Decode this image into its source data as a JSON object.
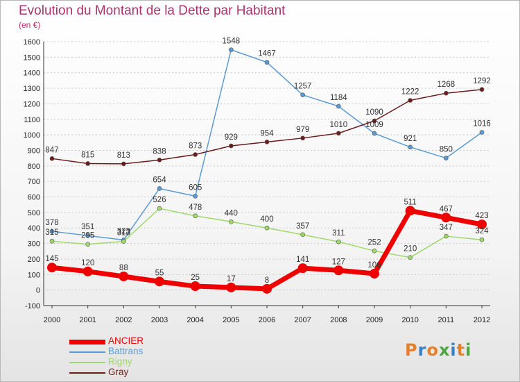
{
  "title": "Evolution du Montant de la Dette par Habitant",
  "subtitle": "(en €)",
  "logo": {
    "text": "Proxiti",
    "colors": [
      "#e8802a",
      "#3a7fc1",
      "#e8802a",
      "#4aa83c",
      "#3a7fc1",
      "#e8802a",
      "#4aa83c"
    ]
  },
  "colors": {
    "title": "#b0306f",
    "grid": "#c8c8c8",
    "axis": "#333333"
  },
  "chart_data": {
    "type": "line",
    "title": "Evolution du Montant de la Dette par Habitant",
    "ylabel": "(en €)",
    "categories": [
      "2000",
      "2001",
      "2002",
      "2003",
      "2004",
      "2005",
      "2006",
      "2007",
      "2008",
      "2009",
      "2010",
      "2011",
      "2012"
    ],
    "ylim": [
      -100,
      1600
    ],
    "yticks": [
      -100,
      0,
      100,
      200,
      300,
      400,
      500,
      600,
      700,
      800,
      900,
      1000,
      1100,
      1200,
      1300,
      1400,
      1500,
      1600
    ],
    "grid": true,
    "legend": "bottom-left",
    "series": [
      {
        "name": "ANCIER",
        "color": "#ee0000",
        "width": 7,
        "marker": 7,
        "values": [
          145,
          120,
          88,
          55,
          25,
          17,
          8,
          141,
          127,
          106,
          511,
          467,
          423
        ]
      },
      {
        "name": "Battrans",
        "color": "#5b9bd5",
        "width": 1.5,
        "marker": 3,
        "values": [
          378,
          351,
          323,
          654,
          605,
          1548,
          1467,
          1257,
          1184,
          1009,
          921,
          850,
          1016
        ]
      },
      {
        "name": "Rigny",
        "color": "#9fd96a",
        "width": 1.5,
        "marker": 3,
        "values": [
          315,
          295,
          313,
          526,
          478,
          440,
          400,
          357,
          311,
          252,
          210,
          347,
          324
        ]
      },
      {
        "name": "Gray",
        "color": "#6b1b1b",
        "width": 1.5,
        "marker": 3,
        "values": [
          847,
          815,
          813,
          838,
          873,
          929,
          954,
          979,
          1010,
          1090,
          1222,
          1268,
          1292
        ]
      }
    ]
  }
}
